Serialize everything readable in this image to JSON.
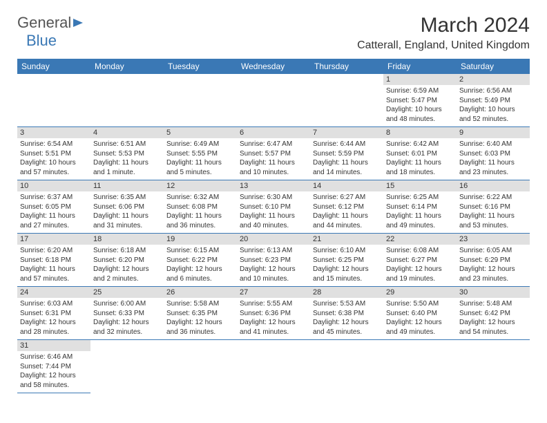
{
  "brand": {
    "part1": "General",
    "part2": "Blue"
  },
  "title": "March 2024",
  "location": "Catterall, England, United Kingdom",
  "colors": {
    "header_bg": "#3a78b5",
    "header_text": "#ffffff",
    "daynum_bg": "#e0e0e0",
    "border": "#3a78b5",
    "text": "#333333",
    "logo_gray": "#555555"
  },
  "type": "table",
  "weekdays": [
    "Sunday",
    "Monday",
    "Tuesday",
    "Wednesday",
    "Thursday",
    "Friday",
    "Saturday"
  ],
  "weeks": [
    [
      null,
      null,
      null,
      null,
      null,
      {
        "n": "1",
        "sr": "6:59 AM",
        "ss": "5:47 PM",
        "dl": "10 hours and 48 minutes."
      },
      {
        "n": "2",
        "sr": "6:56 AM",
        "ss": "5:49 PM",
        "dl": "10 hours and 52 minutes."
      }
    ],
    [
      {
        "n": "3",
        "sr": "6:54 AM",
        "ss": "5:51 PM",
        "dl": "10 hours and 57 minutes."
      },
      {
        "n": "4",
        "sr": "6:51 AM",
        "ss": "5:53 PM",
        "dl": "11 hours and 1 minute."
      },
      {
        "n": "5",
        "sr": "6:49 AM",
        "ss": "5:55 PM",
        "dl": "11 hours and 5 minutes."
      },
      {
        "n": "6",
        "sr": "6:47 AM",
        "ss": "5:57 PM",
        "dl": "11 hours and 10 minutes."
      },
      {
        "n": "7",
        "sr": "6:44 AM",
        "ss": "5:59 PM",
        "dl": "11 hours and 14 minutes."
      },
      {
        "n": "8",
        "sr": "6:42 AM",
        "ss": "6:01 PM",
        "dl": "11 hours and 18 minutes."
      },
      {
        "n": "9",
        "sr": "6:40 AM",
        "ss": "6:03 PM",
        "dl": "11 hours and 23 minutes."
      }
    ],
    [
      {
        "n": "10",
        "sr": "6:37 AM",
        "ss": "6:05 PM",
        "dl": "11 hours and 27 minutes."
      },
      {
        "n": "11",
        "sr": "6:35 AM",
        "ss": "6:06 PM",
        "dl": "11 hours and 31 minutes."
      },
      {
        "n": "12",
        "sr": "6:32 AM",
        "ss": "6:08 PM",
        "dl": "11 hours and 36 minutes."
      },
      {
        "n": "13",
        "sr": "6:30 AM",
        "ss": "6:10 PM",
        "dl": "11 hours and 40 minutes."
      },
      {
        "n": "14",
        "sr": "6:27 AM",
        "ss": "6:12 PM",
        "dl": "11 hours and 44 minutes."
      },
      {
        "n": "15",
        "sr": "6:25 AM",
        "ss": "6:14 PM",
        "dl": "11 hours and 49 minutes."
      },
      {
        "n": "16",
        "sr": "6:22 AM",
        "ss": "6:16 PM",
        "dl": "11 hours and 53 minutes."
      }
    ],
    [
      {
        "n": "17",
        "sr": "6:20 AM",
        "ss": "6:18 PM",
        "dl": "11 hours and 57 minutes."
      },
      {
        "n": "18",
        "sr": "6:18 AM",
        "ss": "6:20 PM",
        "dl": "12 hours and 2 minutes."
      },
      {
        "n": "19",
        "sr": "6:15 AM",
        "ss": "6:22 PM",
        "dl": "12 hours and 6 minutes."
      },
      {
        "n": "20",
        "sr": "6:13 AM",
        "ss": "6:23 PM",
        "dl": "12 hours and 10 minutes."
      },
      {
        "n": "21",
        "sr": "6:10 AM",
        "ss": "6:25 PM",
        "dl": "12 hours and 15 minutes."
      },
      {
        "n": "22",
        "sr": "6:08 AM",
        "ss": "6:27 PM",
        "dl": "12 hours and 19 minutes."
      },
      {
        "n": "23",
        "sr": "6:05 AM",
        "ss": "6:29 PM",
        "dl": "12 hours and 23 minutes."
      }
    ],
    [
      {
        "n": "24",
        "sr": "6:03 AM",
        "ss": "6:31 PM",
        "dl": "12 hours and 28 minutes."
      },
      {
        "n": "25",
        "sr": "6:00 AM",
        "ss": "6:33 PM",
        "dl": "12 hours and 32 minutes."
      },
      {
        "n": "26",
        "sr": "5:58 AM",
        "ss": "6:35 PM",
        "dl": "12 hours and 36 minutes."
      },
      {
        "n": "27",
        "sr": "5:55 AM",
        "ss": "6:36 PM",
        "dl": "12 hours and 41 minutes."
      },
      {
        "n": "28",
        "sr": "5:53 AM",
        "ss": "6:38 PM",
        "dl": "12 hours and 45 minutes."
      },
      {
        "n": "29",
        "sr": "5:50 AM",
        "ss": "6:40 PM",
        "dl": "12 hours and 49 minutes."
      },
      {
        "n": "30",
        "sr": "5:48 AM",
        "ss": "6:42 PM",
        "dl": "12 hours and 54 minutes."
      }
    ],
    [
      {
        "n": "31",
        "sr": "6:46 AM",
        "ss": "7:44 PM",
        "dl": "12 hours and 58 minutes."
      },
      null,
      null,
      null,
      null,
      null,
      null
    ]
  ],
  "labels": {
    "sunrise": "Sunrise: ",
    "sunset": "Sunset: ",
    "daylight": "Daylight: "
  }
}
